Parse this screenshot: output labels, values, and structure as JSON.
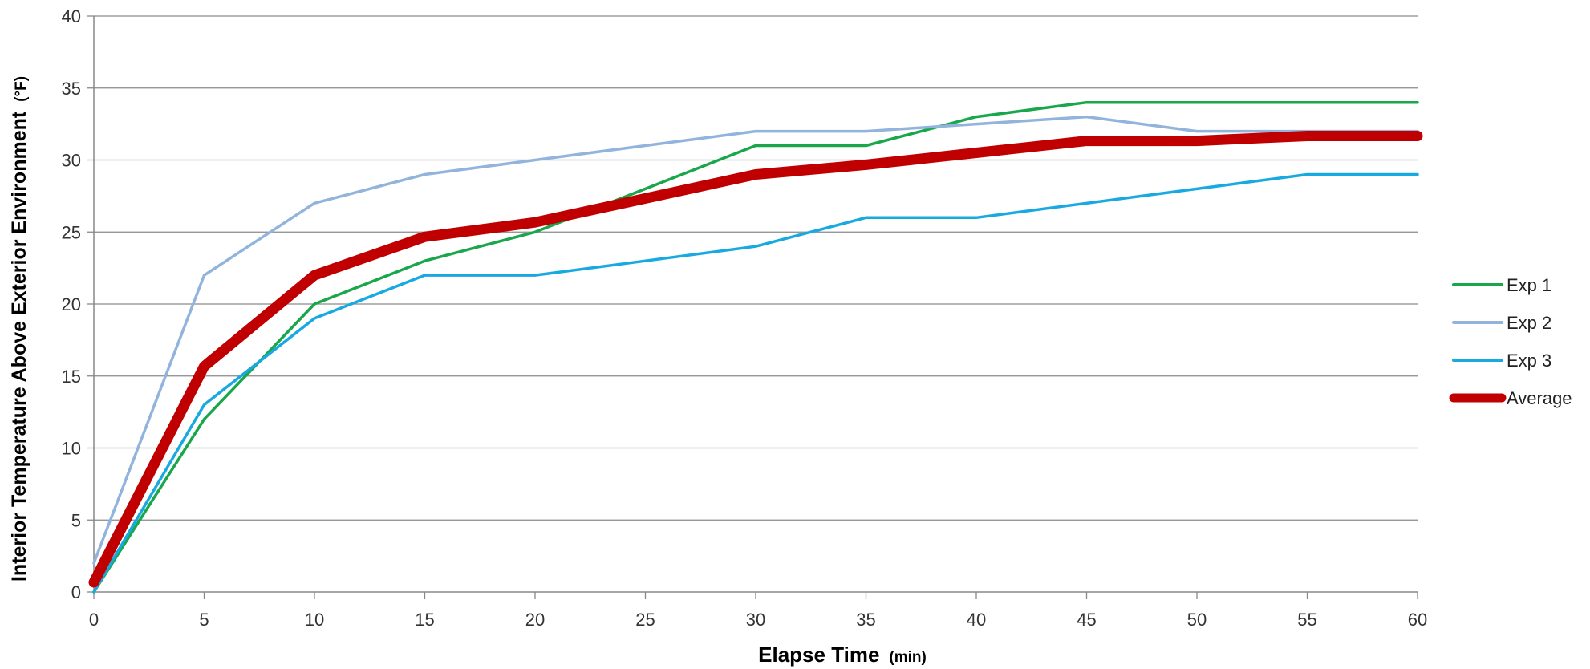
{
  "chart_data": {
    "type": "line",
    "x": [
      0,
      5,
      10,
      15,
      20,
      25,
      30,
      35,
      40,
      45,
      50,
      55,
      60
    ],
    "series": [
      {
        "name": "Exp 1",
        "color": "#1aa64a",
        "values": [
          0,
          12,
          20,
          23,
          25,
          28,
          31,
          31,
          33,
          34,
          34,
          34,
          34
        ]
      },
      {
        "name": "Exp 2",
        "color": "#92b4dc",
        "values": [
          2,
          22,
          27,
          29,
          30,
          31,
          32,
          32,
          32.5,
          33,
          32,
          32,
          32
        ]
      },
      {
        "name": "Exp 3",
        "color": "#19a9e1",
        "values": [
          0,
          13,
          19,
          22,
          22,
          23,
          24,
          26,
          26,
          27,
          28,
          29,
          29
        ]
      },
      {
        "name": "Average",
        "color": "#c00000",
        "values": [
          0.67,
          15.67,
          22,
          24.67,
          25.67,
          27.33,
          29,
          29.67,
          30.5,
          31.33,
          31.33,
          31.67,
          31.67
        ]
      }
    ],
    "xlabel": "Elapse Time",
    "xlabel_unit": "(min)",
    "ylabel": "Interior Temperature Above Exterior Environment",
    "ylabel_unit": "(°F)",
    "xlim": [
      0,
      60
    ],
    "ylim": [
      0,
      40
    ],
    "x_ticks": [
      "0",
      "5",
      "10",
      "15",
      "20",
      "25",
      "30",
      "35",
      "40",
      "45",
      "50",
      "55",
      "60"
    ],
    "y_ticks": [
      "0",
      "5",
      "10",
      "15",
      "20",
      "25",
      "30",
      "35",
      "40"
    ],
    "grid": true,
    "legend": "right"
  }
}
